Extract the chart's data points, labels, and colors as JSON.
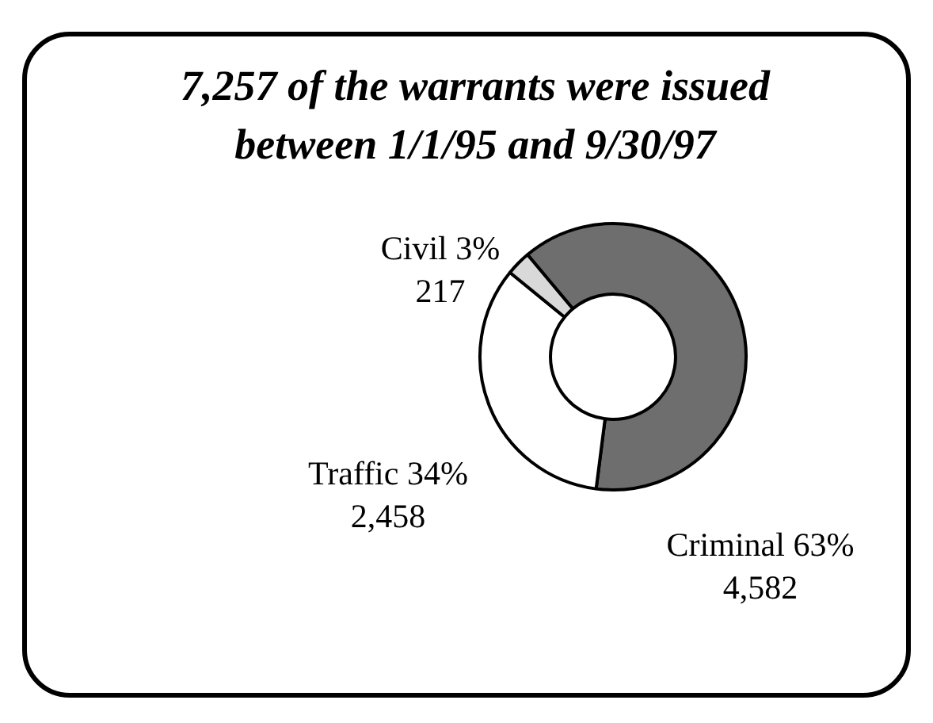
{
  "chart_data": {
    "type": "donut",
    "title": "7,257 of the warrants were issued between 1/1/95 and 9/30/97",
    "categories": [
      "Criminal 63%",
      "Traffic 34%",
      "Civil 3%"
    ],
    "values": [
      4582,
      2458,
      217
    ],
    "value_labels": [
      "4,582",
      "2,458",
      "217"
    ],
    "colors": [
      "#6e6e6e",
      "#ffffff",
      "#d9d9d9"
    ],
    "legend": false
  }
}
